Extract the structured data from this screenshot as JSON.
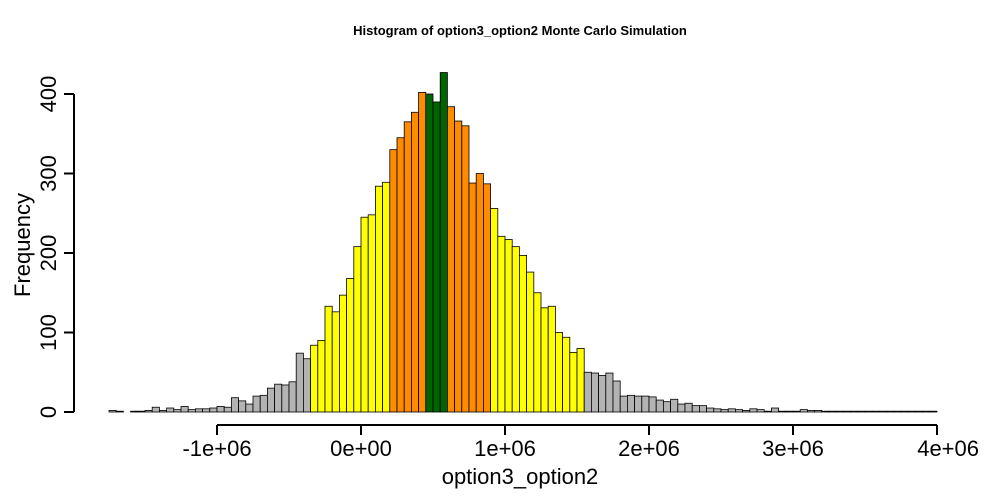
{
  "chart_data": {
    "type": "bar",
    "title": "Histogram of  option3_option2  Monte Carlo Simulation",
    "xlabel": "option3_option2",
    "ylabel": "Frequency",
    "bin_width": 50000,
    "x_start": -1750000,
    "xlim": [
      -1750000,
      4000000
    ],
    "ylim": [
      0,
      400
    ],
    "x_ticks": [
      -1000000,
      0,
      1000000,
      2000000,
      3000000,
      4000000
    ],
    "x_tick_labels": [
      "-1e+06",
      "0e+00",
      "1e+06",
      "2e+06",
      "3e+06",
      "4e+06"
    ],
    "y_ticks": [
      0,
      100,
      200,
      300,
      400
    ],
    "y_tick_labels": [
      "0",
      "100",
      "200",
      "300",
      "400"
    ],
    "colors": {
      "tail": "#b3b3b3",
      "outer": "#ffff00",
      "inner": "#ff8c00",
      "center": "#006400"
    },
    "values": [
      2,
      1,
      0,
      1,
      1,
      2,
      6,
      2,
      5,
      3,
      7,
      3,
      4,
      4,
      5,
      7,
      6,
      18,
      14,
      10,
      20,
      21,
      30,
      35,
      34,
      38,
      74,
      67,
      84,
      90,
      133,
      126,
      147,
      168,
      208,
      245,
      248,
      284,
      289,
      330,
      345,
      365,
      377,
      402,
      400,
      390,
      427,
      384,
      366,
      360,
      288,
      300,
      287,
      256,
      221,
      217,
      208,
      197,
      176,
      150,
      131,
      133,
      100,
      94,
      75,
      80,
      50,
      49,
      46,
      49,
      39,
      20,
      21,
      20,
      20,
      19,
      15,
      13,
      16,
      10,
      11,
      8,
      8,
      5,
      4,
      3,
      4,
      3,
      2,
      4,
      3,
      1,
      5,
      1,
      1,
      1,
      3,
      2,
      2,
      1,
      1,
      1,
      1,
      1,
      1,
      1,
      1,
      1,
      1,
      1,
      1,
      1,
      1,
      1,
      1
    ],
    "bar_colors": [
      "tail",
      "tail",
      "tail",
      "tail",
      "tail",
      "tail",
      "tail",
      "tail",
      "tail",
      "tail",
      "tail",
      "tail",
      "tail",
      "tail",
      "tail",
      "tail",
      "tail",
      "tail",
      "tail",
      "tail",
      "tail",
      "tail",
      "tail",
      "tail",
      "tail",
      "tail",
      "tail",
      "tail",
      "outer",
      "outer",
      "outer",
      "outer",
      "outer",
      "outer",
      "outer",
      "outer",
      "outer",
      "outer",
      "outer",
      "inner",
      "inner",
      "inner",
      "inner",
      "inner",
      "center",
      "center",
      "center",
      "inner",
      "inner",
      "inner",
      "inner",
      "inner",
      "inner",
      "outer",
      "outer",
      "outer",
      "outer",
      "outer",
      "outer",
      "outer",
      "outer",
      "outer",
      "outer",
      "outer",
      "outer",
      "outer",
      "tail",
      "tail",
      "tail",
      "tail",
      "tail",
      "tail",
      "tail",
      "tail",
      "tail",
      "tail",
      "tail",
      "tail",
      "tail",
      "tail",
      "tail",
      "tail",
      "tail",
      "tail",
      "tail",
      "tail",
      "tail",
      "tail",
      "tail",
      "tail",
      "tail",
      "tail",
      "tail",
      "tail",
      "tail",
      "tail",
      "tail",
      "tail",
      "tail",
      "tail",
      "tail",
      "tail",
      "tail",
      "tail",
      "tail",
      "tail",
      "tail",
      "tail",
      "tail",
      "tail",
      "tail",
      "tail",
      "tail",
      "tail",
      "tail",
      "tail"
    ]
  }
}
